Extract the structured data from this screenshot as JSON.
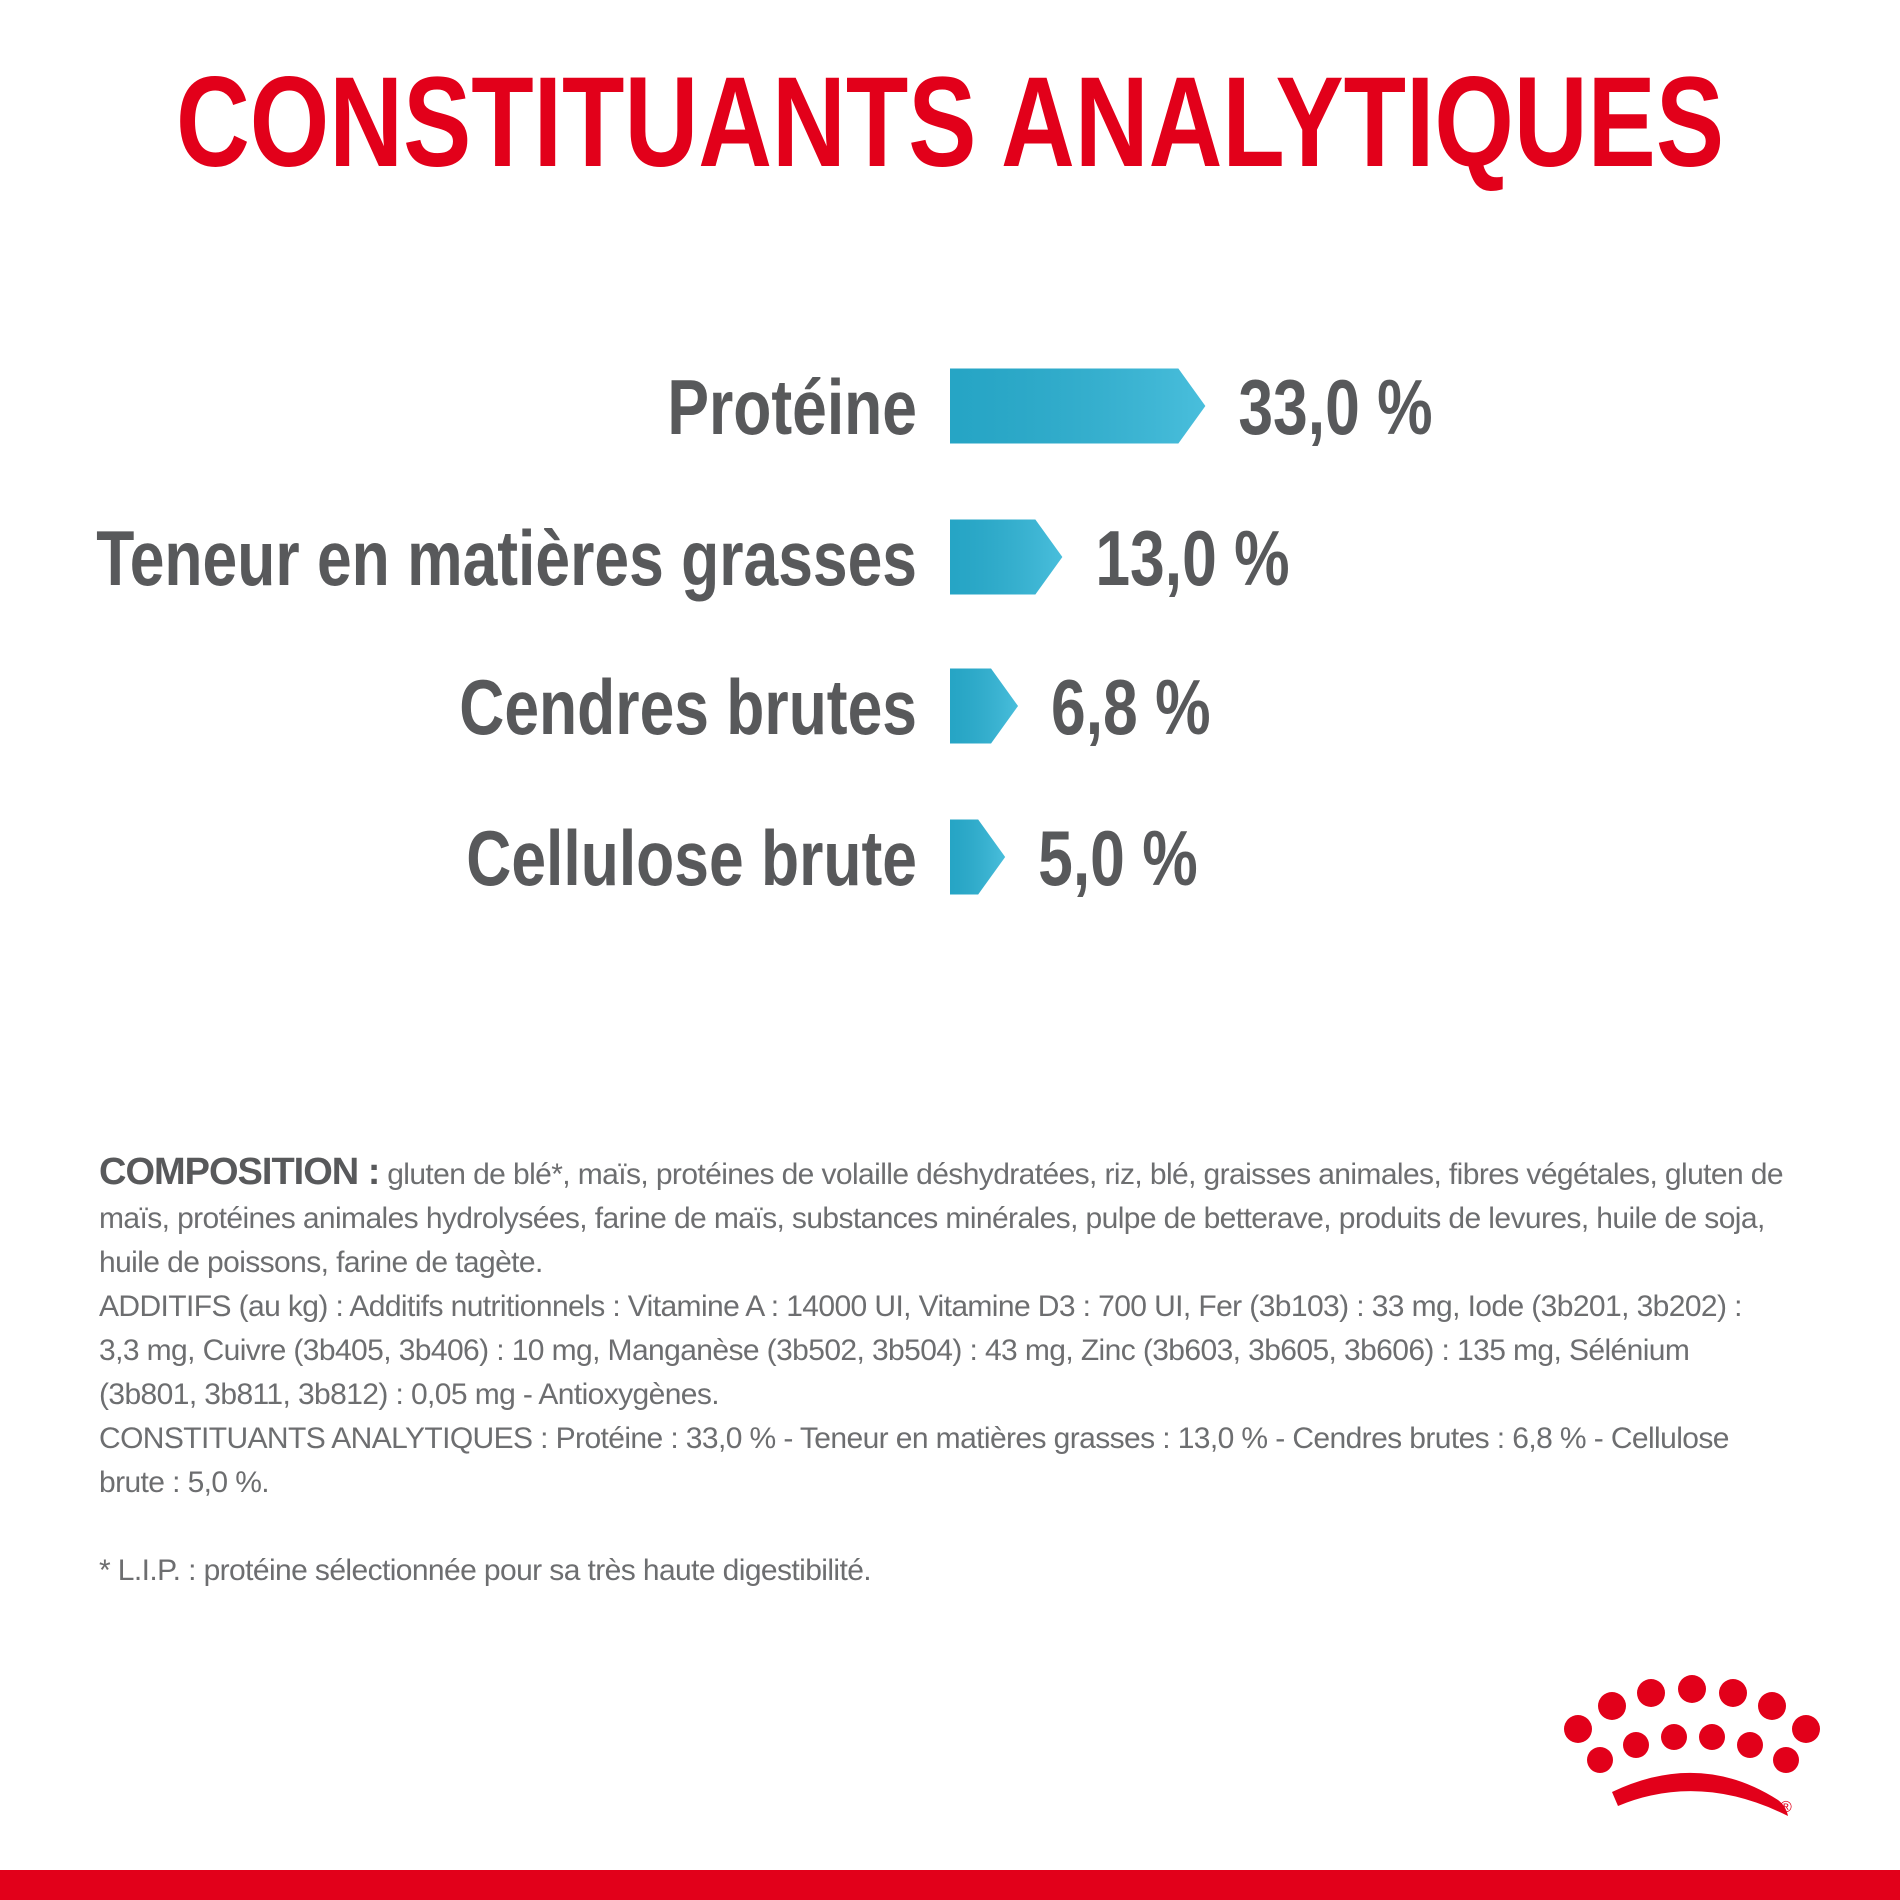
{
  "chart_data": {
    "type": "bar",
    "title": "CONSTITUANTS ANALYTIQUES",
    "categories": [
      "Protéine",
      "Teneur en matières grasses",
      "Cendres brutes",
      "Cellulose brute"
    ],
    "values": [
      33.0,
      13.0,
      6.8,
      5.0
    ],
    "value_labels": [
      "33,0 %",
      "13,0 %",
      "6,8 %",
      "5,0 %"
    ],
    "color": "#29b3d6"
  },
  "composition": {
    "label": "COMPOSITION :",
    "text": "gluten de blé*, maïs, protéines de volaille déshydratées, riz, blé, graisses animales, fibres végétales, gluten de maïs, protéines animales hydrolysées, farine de maïs, substances minérales, pulpe de betterave, produits de levures, huile de soja, huile de poissons, farine de tagète.",
    "additives": "ADDITIFS (au kg) : Additifs nutritionnels : Vitamine A : 14000 UI, Vitamine D3 : 700 UI, Fer (3b103) : 33 mg, Iode (3b201, 3b202) : 3,3 mg, Cuivre (3b405, 3b406) : 10 mg, Manganèse (3b502, 3b504) : 43 mg, Zinc (3b603, 3b605, 3b606) : 135 mg, Sélénium (3b801, 3b811, 3b812) : 0,05 mg - Antioxygènes.",
    "constituents": "CONSTITUANTS ANALYTIQUES : Protéine : 33,0 % - Teneur en matières grasses : 13,0 % - Cendres brutes : 6,8 % - Cellulose brute : 5,0 %.",
    "footnote": "* L.I.P. : protéine sélectionnée pour sa très haute digestibilité."
  },
  "logo_mark": "®"
}
